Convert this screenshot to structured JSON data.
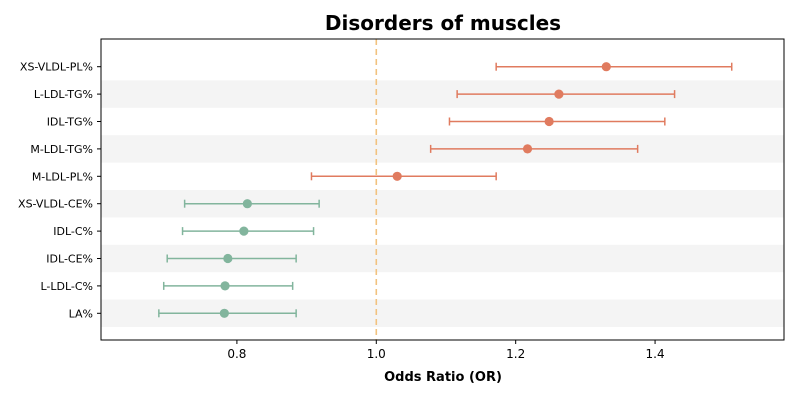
{
  "chart_data": {
    "type": "forest",
    "title": "Disorders of muscles",
    "xlabel": "Odds Ratio (OR)",
    "ylabel": "",
    "xlim": [
      0.605,
      1.585
    ],
    "xticks": [
      "0.8",
      "1.0",
      "1.2",
      "1.4"
    ],
    "reference_line": 1.0,
    "categories": [
      "XS-VLDL-PL%",
      "L-LDL-TG%",
      "IDL-TG%",
      "M-LDL-TG%",
      "M-LDL-PL%",
      "XS-VLDL-CE%",
      "IDL-C%",
      "IDL-CE%",
      "L-LDL-C%",
      "LA%"
    ],
    "or": [
      1.33,
      1.262,
      1.248,
      1.217,
      1.03,
      0.815,
      0.81,
      0.787,
      0.783,
      0.782
    ],
    "ci_low": [
      1.172,
      1.116,
      1.105,
      1.078,
      0.907,
      0.725,
      0.722,
      0.7,
      0.695,
      0.688
    ],
    "ci_high": [
      1.51,
      1.428,
      1.414,
      1.375,
      1.172,
      0.918,
      0.91,
      0.885,
      0.88,
      0.885
    ],
    "colors": {
      "positive": "#e07b5f",
      "negative": "#82b59d",
      "reference_line": "#f2c27e",
      "band": "#f4f4f4"
    },
    "grid": false
  }
}
